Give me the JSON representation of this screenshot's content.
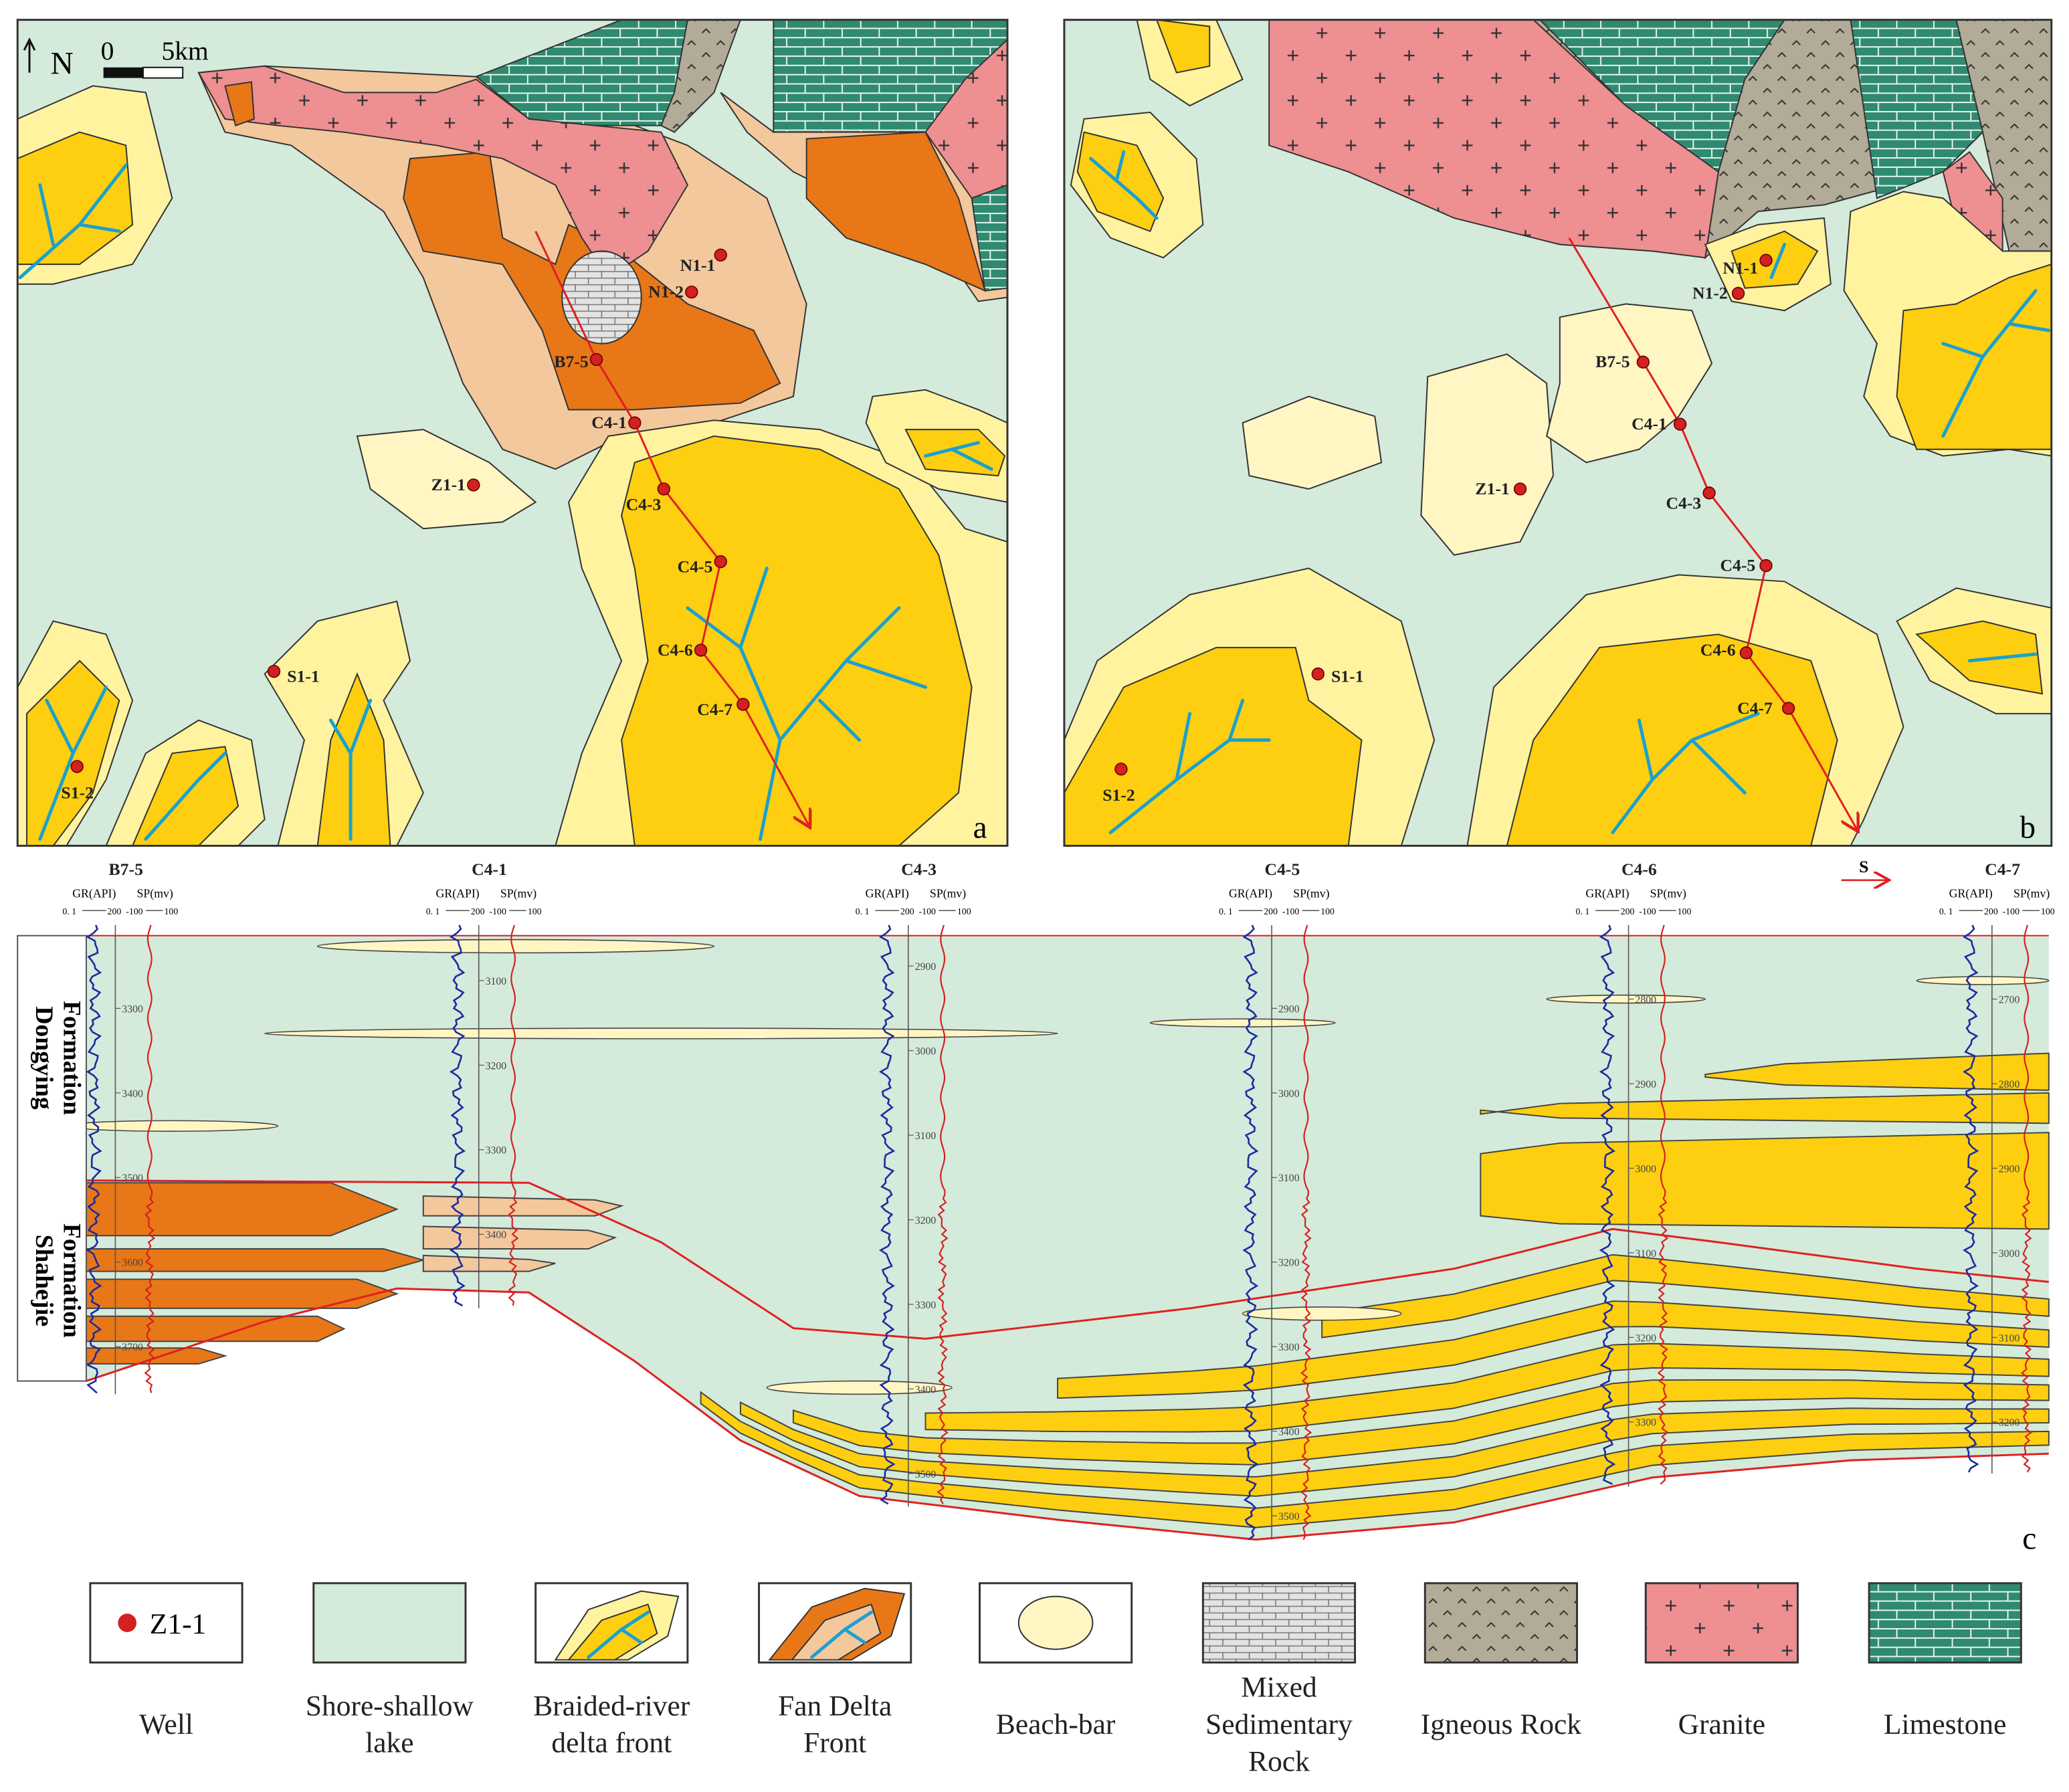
{
  "map_a": {
    "panel_label": "a",
    "north": "N",
    "scale_start": "0",
    "scale_end": "5km",
    "wells": [
      "N1-1",
      "N1-2",
      "B7-5",
      "C4-1",
      "C4-3",
      "C4-5",
      "C4-6",
      "C4-7",
      "Z1-1",
      "S1-1",
      "S1-2"
    ]
  },
  "map_b": {
    "panel_label": "b",
    "wells": [
      "N1-1",
      "N1-2",
      "B7-5",
      "C4-1",
      "C4-3",
      "C4-5",
      "C4-6",
      "C4-7",
      "Z1-1",
      "S1-1",
      "S1-2"
    ]
  },
  "section": {
    "panel_label": "c",
    "direction": "S",
    "log_header": {
      "gr": "GR(API)",
      "sp": "SP(mv)",
      "gr_min": "0. 1",
      "gr_max": "200",
      "sp_min": "-100",
      "sp_max": "100"
    },
    "formations": [
      [
        "Dongying",
        "Formation"
      ],
      [
        "Shahejie",
        "Formation"
      ]
    ],
    "wells": [
      {
        "name": "B7-5",
        "depths": [
          "3300",
          "3400",
          "3500",
          "3600",
          "3700"
        ]
      },
      {
        "name": "C4-1",
        "depths": [
          "3100",
          "3200",
          "3300",
          "3400"
        ]
      },
      {
        "name": "C4-3",
        "depths": [
          "2900",
          "3000",
          "3100",
          "3200",
          "3300",
          "3400",
          "3500"
        ]
      },
      {
        "name": "C4-5",
        "depths": [
          "2900",
          "3000",
          "3100",
          "3200",
          "3300",
          "3400",
          "3500"
        ]
      },
      {
        "name": "C4-6",
        "depths": [
          "2800",
          "2900",
          "3000",
          "3100",
          "3200",
          "3300"
        ]
      },
      {
        "name": "C4-7",
        "depths": [
          "2700",
          "2800",
          "2900",
          "3000",
          "3100",
          "3200"
        ]
      }
    ]
  },
  "legend": [
    {
      "lines": [
        "Well"
      ],
      "sample": "Z1-1"
    },
    {
      "lines": [
        "Shore-shallow",
        "lake"
      ]
    },
    {
      "lines": [
        "Braided-river",
        "delta front"
      ]
    },
    {
      "lines": [
        "Fan Delta",
        "Front"
      ]
    },
    {
      "lines": [
        "Beach-bar"
      ]
    },
    {
      "lines": [
        "Mixed",
        "Sedimentary",
        "Rock"
      ]
    },
    {
      "lines": [
        "Igneous Rock"
      ]
    },
    {
      "lines": [
        "Granite"
      ]
    },
    {
      "lines": [
        "Limestone"
      ]
    }
  ]
}
